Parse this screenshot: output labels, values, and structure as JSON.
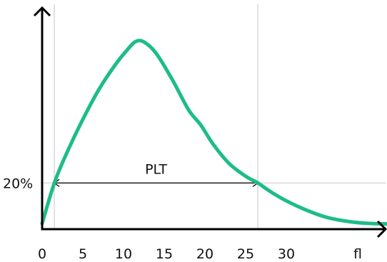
{
  "chart_data": {
    "type": "line",
    "title": "",
    "xlabel": "",
    "ylabel": "",
    "x_ticks": [
      0,
      5,
      10,
      15,
      20,
      25,
      30
    ],
    "x_unit_label": "fl",
    "xlim": [
      0,
      42.5
    ],
    "ylim": [
      0,
      55
    ],
    "threshold": {
      "label": "20%",
      "y": 12.2
    },
    "vertical_lines_x": [
      1.5,
      26.5
    ],
    "measure": {
      "label": "PLT",
      "from_x": 1.5,
      "to_x": 26.5,
      "y": 12.2
    },
    "series": [
      {
        "color": "#1dbd86",
        "points": [
          [
            0,
            1.5
          ],
          [
            1.5,
            12.2
          ],
          [
            3,
            20
          ],
          [
            5,
            29
          ],
          [
            7,
            37
          ],
          [
            9,
            43.5
          ],
          [
            10.5,
            47.5
          ],
          [
            11.5,
            49.6
          ],
          [
            12.5,
            49.5
          ],
          [
            14,
            46.5
          ],
          [
            16,
            39.5
          ],
          [
            18,
            31.5
          ],
          [
            19.5,
            27.5
          ],
          [
            21,
            22.5
          ],
          [
            23,
            17.3
          ],
          [
            25,
            14
          ],
          [
            26.5,
            12.2
          ],
          [
            28,
            10
          ],
          [
            30,
            7.5
          ],
          [
            32.5,
            5
          ],
          [
            35,
            3.1
          ],
          [
            38,
            1.9
          ],
          [
            40.5,
            1.5
          ],
          [
            42.5,
            1.4
          ]
        ]
      }
    ],
    "grid": false,
    "legend": "none"
  }
}
